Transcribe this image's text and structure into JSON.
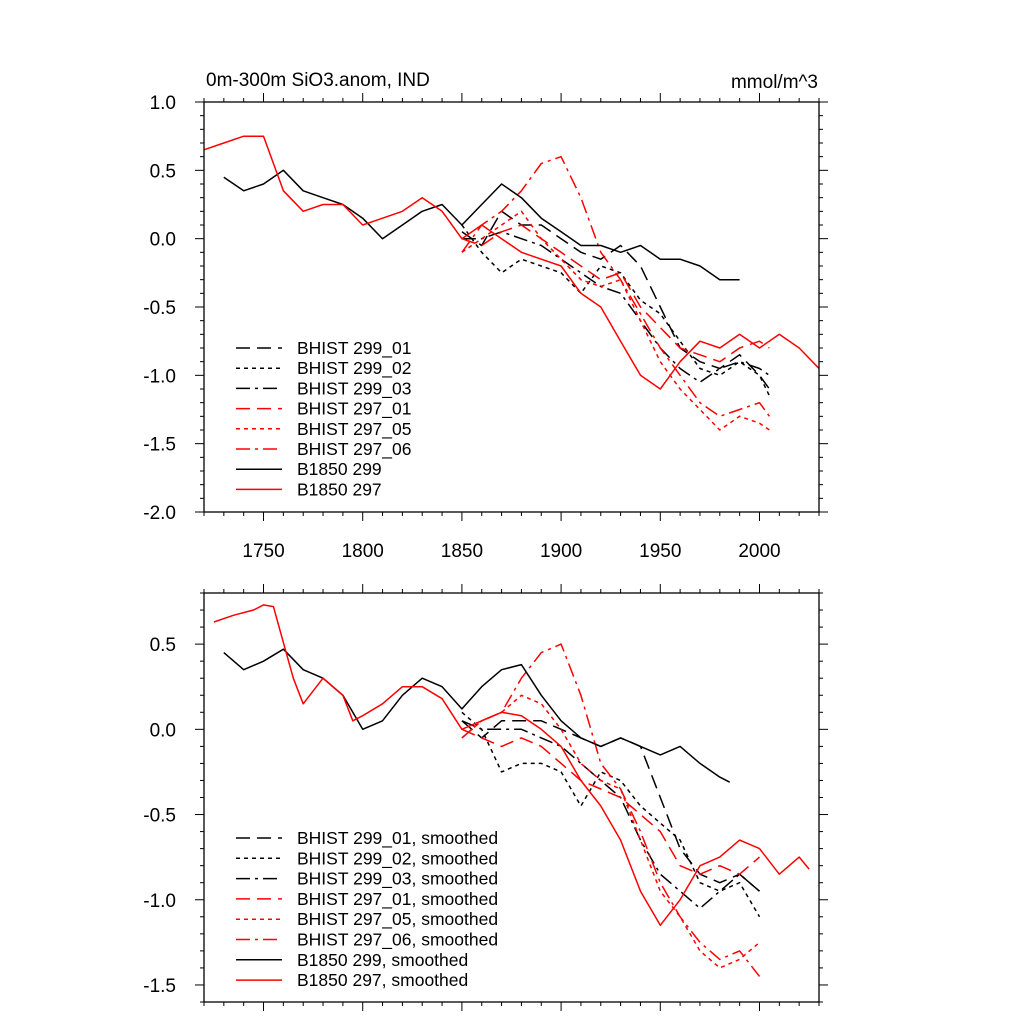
{
  "chart_data": [
    {
      "type": "line",
      "title": "0m-300m SiO3.anom, IND",
      "units": "mmol/m^3",
      "xlabel": "",
      "ylabel": "",
      "xlim": [
        1720,
        2030
      ],
      "ylim": [
        -2.0,
        1.0
      ],
      "xticks": [
        1750,
        1800,
        1850,
        1900,
        1950,
        2000
      ],
      "yticks": [
        1.0,
        0.5,
        0.0,
        -0.5,
        -1.0,
        -1.5,
        -2.0
      ],
      "ytick_labels": [
        "1.0",
        "0.5",
        "0.0",
        "-0.5",
        "-1.0",
        "-1.5",
        "-2.0"
      ],
      "xtick_labels": [
        "1750",
        "1800",
        "1850",
        "1900",
        "1950",
        "2000"
      ],
      "legend_position": "lower-left",
      "series": [
        {
          "name": "BHIST 299_01",
          "color": "#000000",
          "dash": "dash",
          "x": [
            1850,
            1860,
            1870,
            1880,
            1890,
            1900,
            1910,
            1920,
            1930,
            1940,
            1950,
            1960,
            1970,
            1980,
            1990,
            2000,
            2005
          ],
          "y": [
            0.05,
            -0.05,
            0.2,
            0.1,
            0.1,
            0.0,
            -0.1,
            -0.15,
            -0.05,
            -0.2,
            -0.5,
            -0.8,
            -0.9,
            -0.95,
            -0.85,
            -1.0,
            -1.1
          ]
        },
        {
          "name": "BHIST 299_02",
          "color": "#000000",
          "dash": "dot",
          "x": [
            1850,
            1860,
            1870,
            1880,
            1890,
            1900,
            1910,
            1920,
            1930,
            1940,
            1950,
            1960,
            1970,
            1980,
            1990,
            2000,
            2005
          ],
          "y": [
            0.1,
            -0.1,
            -0.25,
            -0.15,
            -0.2,
            -0.25,
            -0.4,
            -0.2,
            -0.25,
            -0.45,
            -0.55,
            -0.75,
            -0.95,
            -1.0,
            -0.9,
            -1.0,
            -1.15
          ]
        },
        {
          "name": "BHIST 299_03",
          "color": "#000000",
          "dash": "dashdot",
          "x": [
            1850,
            1860,
            1870,
            1880,
            1890,
            1900,
            1910,
            1920,
            1930,
            1940,
            1950,
            1960,
            1970,
            1980,
            1990,
            2000,
            2005
          ],
          "y": [
            0.0,
            0.0,
            0.05,
            0.0,
            -0.05,
            -0.15,
            -0.25,
            -0.35,
            -0.4,
            -0.6,
            -0.8,
            -0.95,
            -1.05,
            -0.95,
            -0.9,
            -0.95,
            -1.0
          ]
        },
        {
          "name": "BHIST 297_01",
          "color": "#ff0000",
          "dash": "dash",
          "x": [
            1850,
            1860,
            1870,
            1880,
            1890,
            1900,
            1910,
            1920,
            1930,
            1940,
            1950,
            1960,
            1970,
            1980,
            1990,
            2000,
            2005
          ],
          "y": [
            0.0,
            -0.05,
            0.05,
            0.1,
            0.0,
            -0.1,
            -0.2,
            -0.3,
            -0.25,
            -0.5,
            -0.65,
            -0.8,
            -0.85,
            -0.9,
            -0.8,
            -0.75,
            -0.8
          ]
        },
        {
          "name": "BHIST 297_05",
          "color": "#ff0000",
          "dash": "dot",
          "x": [
            1850,
            1860,
            1870,
            1880,
            1890,
            1900,
            1910,
            1920,
            1930,
            1940,
            1950,
            1960,
            1970,
            1980,
            1990,
            2000,
            2005
          ],
          "y": [
            -0.1,
            0.0,
            0.1,
            0.2,
            0.0,
            -0.15,
            -0.3,
            -0.35,
            -0.3,
            -0.6,
            -0.9,
            -1.1,
            -1.25,
            -1.4,
            -1.3,
            -1.35,
            -1.4
          ]
        },
        {
          "name": "BHIST 297_06",
          "color": "#ff0000",
          "dash": "dashdot",
          "x": [
            1850,
            1860,
            1870,
            1880,
            1890,
            1900,
            1910,
            1920,
            1930,
            1940,
            1950,
            1960,
            1970,
            1980,
            1990,
            2000,
            2005
          ],
          "y": [
            -0.1,
            0.1,
            0.2,
            0.35,
            0.55,
            0.6,
            0.3,
            -0.1,
            -0.3,
            -0.55,
            -0.8,
            -1.0,
            -1.2,
            -1.3,
            -1.25,
            -1.2,
            -1.3
          ]
        },
        {
          "name": "B1850 299",
          "color": "#000000",
          "dash": "solid",
          "x": [
            1730,
            1740,
            1750,
            1760,
            1770,
            1780,
            1790,
            1800,
            1810,
            1820,
            1830,
            1840,
            1850,
            1860,
            1870,
            1880,
            1890,
            1900,
            1910,
            1920,
            1930,
            1940,
            1950,
            1960,
            1970,
            1980,
            1990
          ],
          "y": [
            0.45,
            0.35,
            0.4,
            0.5,
            0.35,
            0.3,
            0.25,
            0.15,
            0.0,
            0.1,
            0.2,
            0.25,
            0.1,
            0.25,
            0.4,
            0.3,
            0.15,
            0.05,
            -0.05,
            -0.05,
            -0.1,
            -0.05,
            -0.15,
            -0.15,
            -0.2,
            -0.3,
            -0.3
          ]
        },
        {
          "name": "B1850 297",
          "color": "#ff0000",
          "dash": "solid",
          "x": [
            1720,
            1730,
            1740,
            1750,
            1760,
            1770,
            1780,
            1790,
            1800,
            1810,
            1820,
            1830,
            1840,
            1850,
            1860,
            1870,
            1880,
            1890,
            1900,
            1910,
            1920,
            1930,
            1940,
            1950,
            1960,
            1970,
            1980,
            1990,
            2000,
            2010,
            2020,
            2030
          ],
          "y": [
            0.65,
            0.7,
            0.75,
            0.75,
            0.35,
            0.2,
            0.25,
            0.25,
            0.1,
            0.15,
            0.2,
            0.3,
            0.2,
            0.0,
            0.1,
            0.0,
            -0.1,
            -0.15,
            -0.2,
            -0.4,
            -0.5,
            -0.75,
            -1.0,
            -1.1,
            -0.9,
            -0.75,
            -0.8,
            -0.7,
            -0.8,
            -0.7,
            -0.8,
            -0.95
          ]
        }
      ]
    },
    {
      "type": "line",
      "title": "",
      "xlabel": "",
      "ylabel": "",
      "xlim": [
        1720,
        2030
      ],
      "ylim": [
        -1.6,
        0.8
      ],
      "xticks": [
        1750,
        1800,
        1850,
        1900,
        1950,
        2000
      ],
      "yticks": [
        0.5,
        0.0,
        -0.5,
        -1.0,
        -1.5
      ],
      "ytick_labels": [
        "0.5",
        "0.0",
        "-0.5",
        "-1.0",
        "-1.5"
      ],
      "legend_position": "lower-left",
      "series": [
        {
          "name": "BHIST 299_01, smoothed",
          "color": "#000000",
          "dash": "dash",
          "x": [
            1850,
            1860,
            1870,
            1880,
            1890,
            1900,
            1910,
            1920,
            1930,
            1940,
            1950,
            1960,
            1970,
            1980,
            1990,
            2000
          ],
          "y": [
            0.05,
            -0.05,
            0.05,
            0.05,
            0.05,
            0.0,
            -0.05,
            -0.1,
            -0.05,
            -0.1,
            -0.4,
            -0.7,
            -0.85,
            -0.9,
            -0.85,
            -0.95
          ]
        },
        {
          "name": "BHIST 299_02, smoothed",
          "color": "#000000",
          "dash": "dot",
          "x": [
            1850,
            1860,
            1870,
            1880,
            1890,
            1900,
            1910,
            1920,
            1930,
            1940,
            1950,
            1960,
            1970,
            1980,
            1990,
            2000
          ],
          "y": [
            0.1,
            0.0,
            -0.25,
            -0.2,
            -0.2,
            -0.25,
            -0.45,
            -0.25,
            -0.3,
            -0.45,
            -0.55,
            -0.65,
            -0.9,
            -0.95,
            -0.9,
            -1.1
          ]
        },
        {
          "name": "BHIST 299_03, smoothed",
          "color": "#000000",
          "dash": "dashdot",
          "x": [
            1850,
            1860,
            1870,
            1880,
            1890,
            1900,
            1910,
            1920,
            1930,
            1940,
            1950,
            1960,
            1970,
            1980,
            1990,
            2000
          ],
          "y": [
            0.05,
            0.0,
            0.0,
            0.0,
            -0.05,
            -0.1,
            -0.2,
            -0.3,
            -0.4,
            -0.65,
            -0.85,
            -0.95,
            -1.05,
            -0.95,
            -0.85,
            -0.95
          ]
        },
        {
          "name": "BHIST 297_01, smoothed",
          "color": "#ff0000",
          "dash": "dash",
          "x": [
            1850,
            1860,
            1870,
            1880,
            1890,
            1900,
            1910,
            1920,
            1930,
            1940,
            1950,
            1960,
            1970,
            1980,
            1990,
            2000
          ],
          "y": [
            0.0,
            -0.05,
            -0.1,
            -0.05,
            -0.1,
            -0.2,
            -0.3,
            -0.35,
            -0.4,
            -0.5,
            -0.6,
            -0.8,
            -0.85,
            -0.8,
            -0.85,
            -0.75
          ]
        },
        {
          "name": "BHIST 297_05, smoothed",
          "color": "#ff0000",
          "dash": "dot",
          "x": [
            1850,
            1860,
            1870,
            1880,
            1890,
            1900,
            1910,
            1920,
            1930,
            1940,
            1950,
            1960,
            1970,
            1980,
            1990,
            2000
          ],
          "y": [
            -0.05,
            0.05,
            0.1,
            0.2,
            0.15,
            0.0,
            -0.2,
            -0.3,
            -0.35,
            -0.65,
            -0.95,
            -1.1,
            -1.3,
            -1.4,
            -1.35,
            -1.25
          ]
        },
        {
          "name": "BHIST 297_06, smoothed",
          "color": "#ff0000",
          "dash": "dashdot",
          "x": [
            1850,
            1860,
            1870,
            1880,
            1890,
            1900,
            1910,
            1920,
            1930,
            1940,
            1950,
            1960,
            1970,
            1980,
            1990,
            2000
          ],
          "y": [
            -0.05,
            0.05,
            0.1,
            0.3,
            0.45,
            0.5,
            0.2,
            -0.2,
            -0.35,
            -0.6,
            -0.9,
            -1.1,
            -1.25,
            -1.35,
            -1.3,
            -1.45
          ]
        },
        {
          "name": "B1850 299, smoothed",
          "color": "#000000",
          "dash": "solid",
          "x": [
            1730,
            1740,
            1750,
            1760,
            1770,
            1780,
            1790,
            1800,
            1810,
            1820,
            1830,
            1840,
            1850,
            1860,
            1870,
            1880,
            1890,
            1900,
            1910,
            1920,
            1930,
            1940,
            1950,
            1960,
            1970,
            1980,
            1985
          ],
          "y": [
            0.45,
            0.35,
            0.4,
            0.47,
            0.35,
            0.3,
            0.2,
            0.0,
            0.05,
            0.2,
            0.3,
            0.25,
            0.12,
            0.25,
            0.35,
            0.38,
            0.2,
            0.05,
            -0.05,
            -0.1,
            -0.05,
            -0.1,
            -0.15,
            -0.1,
            -0.2,
            -0.28,
            -0.31
          ]
        },
        {
          "name": "B1850 297, smoothed",
          "color": "#ff0000",
          "dash": "solid",
          "x": [
            1725,
            1735,
            1745,
            1750,
            1755,
            1765,
            1770,
            1780,
            1790,
            1795,
            1800,
            1810,
            1820,
            1830,
            1840,
            1850,
            1860,
            1870,
            1880,
            1890,
            1900,
            1910,
            1920,
            1930,
            1940,
            1950,
            1960,
            1970,
            1980,
            1990,
            2000,
            2010,
            2020,
            2025
          ],
          "y": [
            0.63,
            0.67,
            0.7,
            0.73,
            0.72,
            0.3,
            0.15,
            0.3,
            0.2,
            0.05,
            0.08,
            0.15,
            0.25,
            0.25,
            0.18,
            0.0,
            0.05,
            0.1,
            0.08,
            0.0,
            -0.1,
            -0.3,
            -0.45,
            -0.65,
            -0.95,
            -1.15,
            -1.0,
            -0.8,
            -0.75,
            -0.65,
            -0.7,
            -0.85,
            -0.75,
            -0.82
          ]
        }
      ]
    }
  ]
}
